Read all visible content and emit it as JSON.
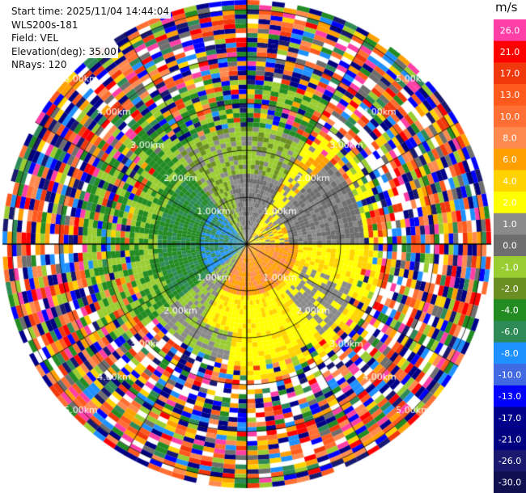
{
  "header": {
    "start_time": "Start time: 2025/11/04 14:44:04",
    "station": "WLS200s-181",
    "field": "Field: VEL",
    "elevation": "Elevation(deg): 35.00",
    "nrays": "NRays: 120"
  },
  "colorbar": {
    "unit": "m/s",
    "levels": [
      {
        "label": "26.0",
        "color": "#ff3fa6"
      },
      {
        "label": "21.0",
        "color": "#ff0000"
      },
      {
        "label": "17.0",
        "color": "#f0380c"
      },
      {
        "label": "13.0",
        "color": "#ff5a1e"
      },
      {
        "label": "10.0",
        "color": "#ff6e32"
      },
      {
        "label": "8.0",
        "color": "#ff8a50"
      },
      {
        "label": "6.0",
        "color": "#ffa000"
      },
      {
        "label": "4.0",
        "color": "#ffd200"
      },
      {
        "label": "2.0",
        "color": "#ffff00"
      },
      {
        "label": "1.0",
        "color": "#8a8a8a"
      },
      {
        "label": "0.0",
        "color": "#6e6e6e"
      },
      {
        "label": "-1.0",
        "color": "#9acd32"
      },
      {
        "label": "-2.0",
        "color": "#6b8e23"
      },
      {
        "label": "-4.0",
        "color": "#228b22"
      },
      {
        "label": "-6.0",
        "color": "#2e8b57"
      },
      {
        "label": "-8.0",
        "color": "#1e90ff"
      },
      {
        "label": "-10.0",
        "color": "#4169e1"
      },
      {
        "label": "-13.0",
        "color": "#0000ff"
      },
      {
        "label": "-17.0",
        "color": "#00008b"
      },
      {
        "label": "-21.0",
        "color": "#000080"
      },
      {
        "label": "-26.0",
        "color": "#191970"
      },
      {
        "label": "-30.0",
        "color": "#101050"
      }
    ]
  },
  "range_rings": [
    "1.00km",
    "2.00km",
    "3.00km",
    "4.00km",
    "5.00km"
  ]
}
